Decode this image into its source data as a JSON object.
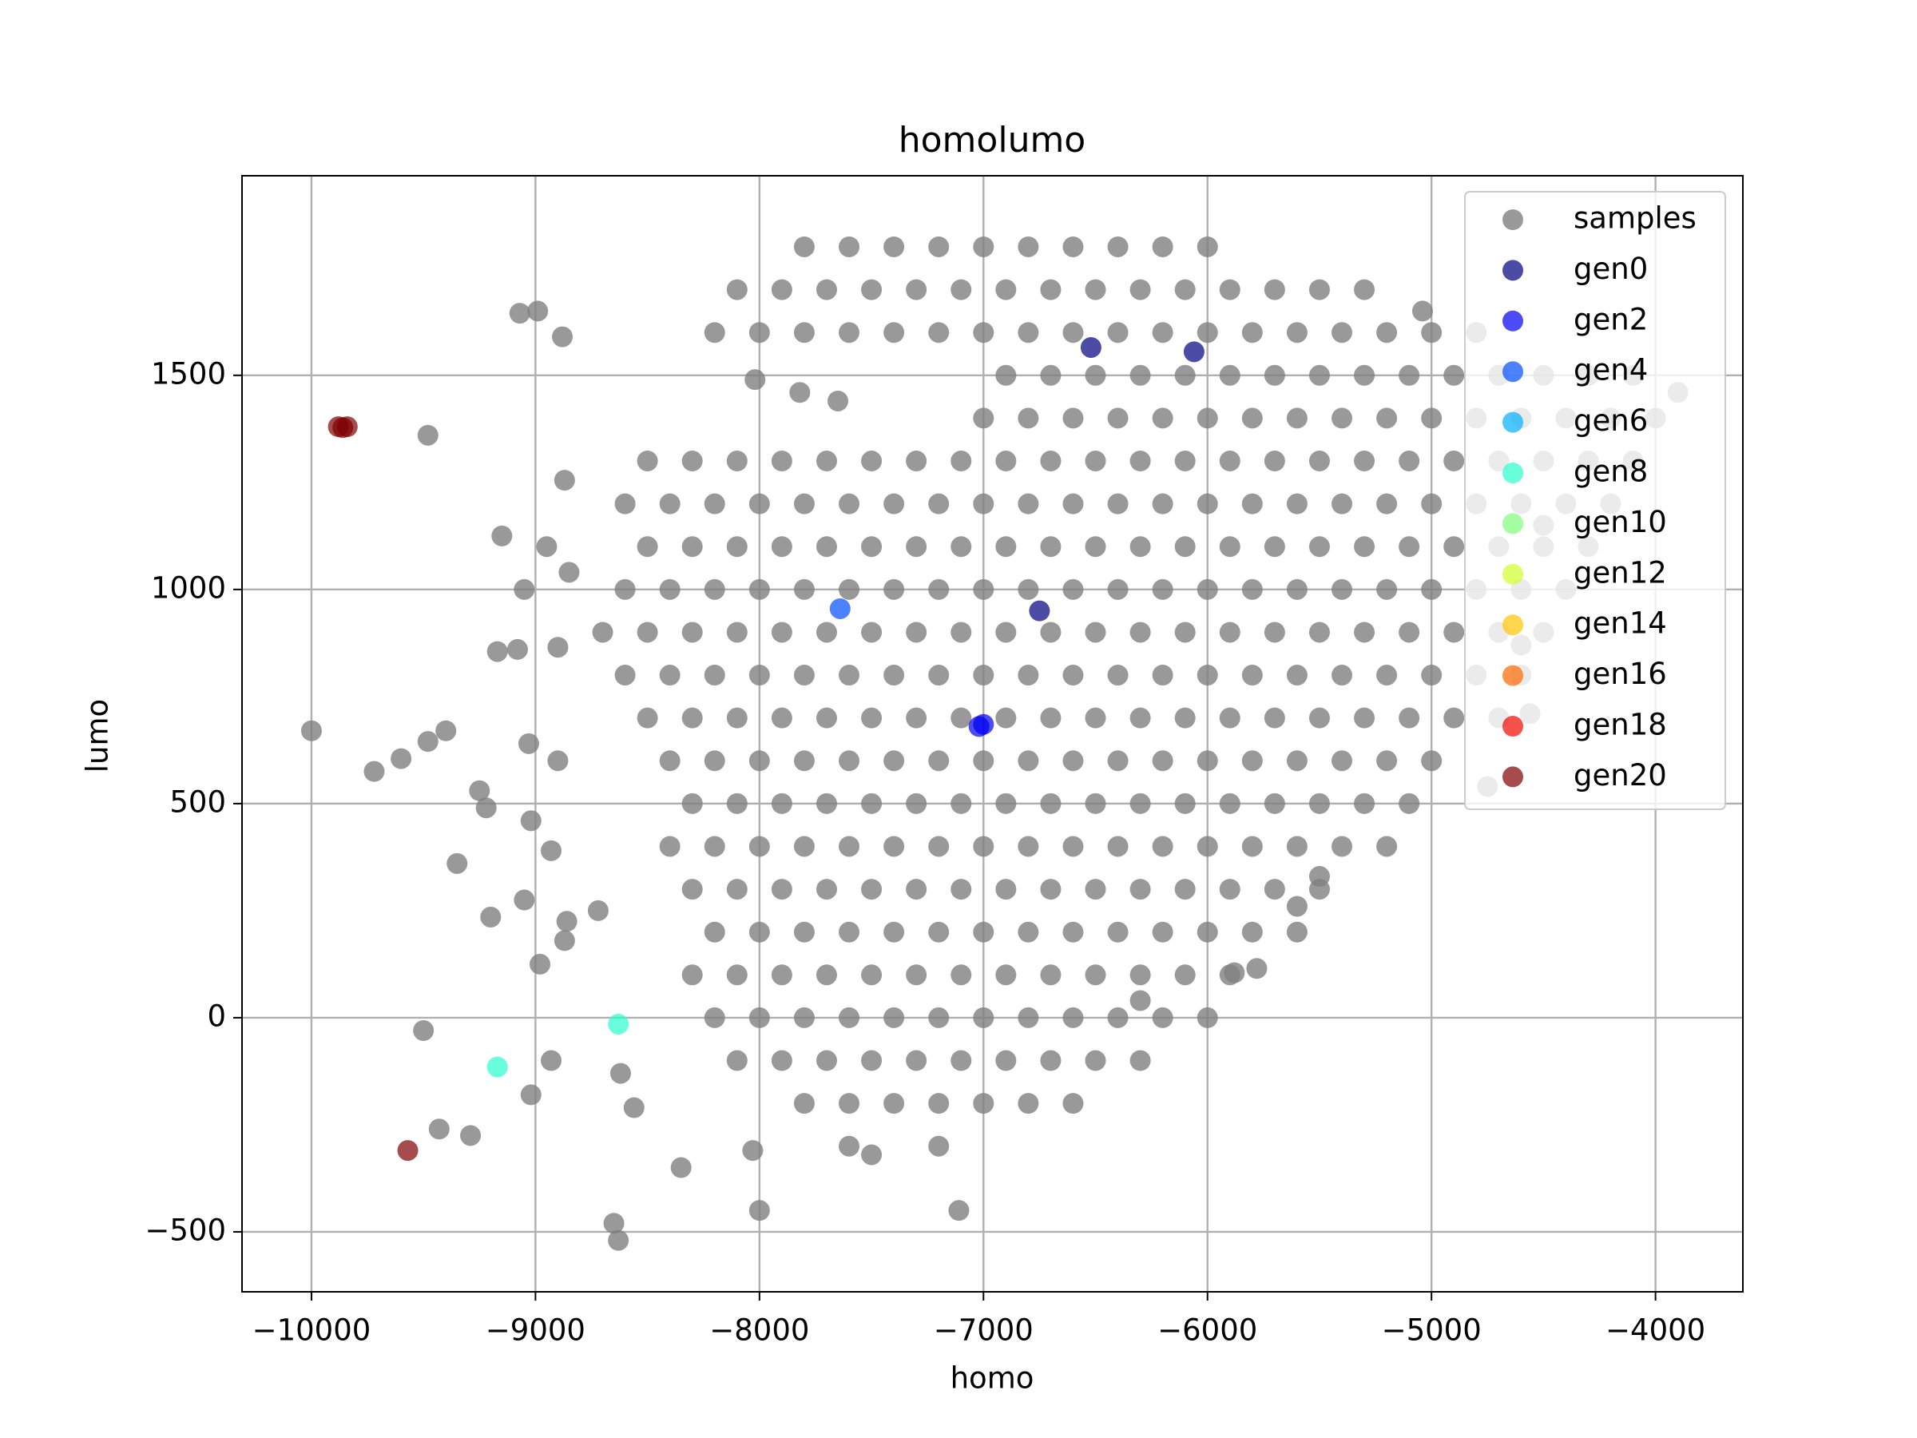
{
  "chart_data": {
    "type": "scatter",
    "title": "homolumo",
    "x_label": "homo",
    "y_label": "lumo",
    "xlim": [
      -10310,
      -3610
    ],
    "ylim": [
      -640,
      1966
    ],
    "xticks": [
      {
        "value": -10000,
        "label": "−10000"
      },
      {
        "value": -9000,
        "label": "−9000"
      },
      {
        "value": -8000,
        "label": "−8000"
      },
      {
        "value": -7000,
        "label": "−7000"
      },
      {
        "value": -6000,
        "label": "−6000"
      },
      {
        "value": -5000,
        "label": "−5000"
      },
      {
        "value": -4000,
        "label": "−4000"
      }
    ],
    "yticks": [
      {
        "value": -500,
        "label": "−500"
      },
      0,
      500,
      1000,
      1500
    ],
    "grid": true,
    "legend": "upper right",
    "series": [
      {
        "name": "samples",
        "color": "#808080",
        "x": [
          -7800,
          -7600,
          -7400,
          -7200,
          -7000,
          -6800,
          -6600,
          -6400,
          -6200,
          -6000,
          -8100,
          -7900,
          -7700,
          -7500,
          -7300,
          -7100,
          -6900,
          -6700,
          -6500,
          -6300,
          -6100,
          -5900,
          -5700,
          -5500,
          -5300,
          -8200,
          -8000,
          -7800,
          -7600,
          -7400,
          -7200,
          -7000,
          -6800,
          -6600,
          -6400,
          -6200,
          -6000,
          -5800,
          -5600,
          -5400,
          -5200,
          -5000,
          -4800,
          -6900,
          -6700,
          -6500,
          -6300,
          -6100,
          -5900,
          -5700,
          -5500,
          -5300,
          -5100,
          -4900,
          -4700,
          -4500,
          -4300,
          -4100,
          -7000,
          -6800,
          -6600,
          -6400,
          -6200,
          -6000,
          -5800,
          -5600,
          -5400,
          -5200,
          -5000,
          -4800,
          -4600,
          -4400,
          -4200,
          -4000,
          -8500,
          -8300,
          -8100,
          -7900,
          -7700,
          -7500,
          -7300,
          -7100,
          -6900,
          -6700,
          -6500,
          -6300,
          -6100,
          -5900,
          -5700,
          -5500,
          -5300,
          -5100,
          -4900,
          -4700,
          -4500,
          -4300,
          -4100,
          -8600,
          -8400,
          -8200,
          -8000,
          -7800,
          -7600,
          -7400,
          -7200,
          -7000,
          -6800,
          -6600,
          -6400,
          -6200,
          -6000,
          -5800,
          -5600,
          -5400,
          -5200,
          -5000,
          -4800,
          -4600,
          -4400,
          -4200,
          -8500,
          -8300,
          -8100,
          -7900,
          -7700,
          -7500,
          -7300,
          -7100,
          -6900,
          -6700,
          -6500,
          -6300,
          -6100,
          -5900,
          -5700,
          -5500,
          -5300,
          -5100,
          -4900,
          -4700,
          -4500,
          -4300,
          -8600,
          -8400,
          -8200,
          -8000,
          -7800,
          -7600,
          -7400,
          -7200,
          -7000,
          -6800,
          -6600,
          -6400,
          -6200,
          -6000,
          -5800,
          -5600,
          -5400,
          -5200,
          -5000,
          -4800,
          -4600,
          -4400,
          -8700,
          -8500,
          -8300,
          -8100,
          -7900,
          -7700,
          -7500,
          -7300,
          -7100,
          -6900,
          -6700,
          -6500,
          -6300,
          -6100,
          -5900,
          -5700,
          -5500,
          -5300,
          -5100,
          -4900,
          -4700,
          -4500,
          -8600,
          -8400,
          -8200,
          -8000,
          -7800,
          -7600,
          -7400,
          -7200,
          -7000,
          -6800,
          -6600,
          -6400,
          -6200,
          -6000,
          -5800,
          -5600,
          -5400,
          -5200,
          -5000,
          -4800,
          -4600,
          -8500,
          -8300,
          -8100,
          -7900,
          -7700,
          -7500,
          -7300,
          -7100,
          -6900,
          -6700,
          -6500,
          -6300,
          -6100,
          -5900,
          -5700,
          -5500,
          -5300,
          -5100,
          -4900,
          -4700,
          -8400,
          -8200,
          -8000,
          -7800,
          -7600,
          -7400,
          -7200,
          -7000,
          -6800,
          -6600,
          -6400,
          -6200,
          -6000,
          -5800,
          -5600,
          -5400,
          -5200,
          -5000,
          -8300,
          -8100,
          -7900,
          -7700,
          -7500,
          -7300,
          -7100,
          -6900,
          -6700,
          -6500,
          -6300,
          -6100,
          -5900,
          -5700,
          -5500,
          -5300,
          -5100,
          -8400,
          -8200,
          -8000,
          -7800,
          -7600,
          -7400,
          -7200,
          -7000,
          -6800,
          -6600,
          -6400,
          -6200,
          -6000,
          -5800,
          -5600,
          -5400,
          -5200,
          -8300,
          -8100,
          -7900,
          -7700,
          -7500,
          -7300,
          -7100,
          -6900,
          -6700,
          -6500,
          -6300,
          -6100,
          -5900,
          -5700,
          -5500,
          -8200,
          -8000,
          -7800,
          -7600,
          -7400,
          -7200,
          -7000,
          -6800,
          -6600,
          -6400,
          -6200,
          -6000,
          -5800,
          -5600,
          -8300,
          -8100,
          -7900,
          -7700,
          -7500,
          -7300,
          -7100,
          -6900,
          -6700,
          -6500,
          -6300,
          -6100,
          -5900,
          -8200,
          -8000,
          -7800,
          -7600,
          -7400,
          -7200,
          -7000,
          -6800,
          -6600,
          -6400,
          -6200,
          -6000,
          -8100,
          -7900,
          -7700,
          -7500,
          -7300,
          -7100,
          -6900,
          -6700,
          -6500,
          -6300,
          -7800,
          -7600,
          -7400,
          -7200,
          -7000,
          -6800,
          -6600,
          -10000,
          -9720,
          -9600,
          -9480,
          -9400,
          -9480,
          -9070,
          -8990,
          -8880,
          -8870,
          -9150,
          -8950,
          -9050,
          -8850,
          -9170,
          -9080,
          -8900,
          -9030,
          -8900,
          -9250,
          -9220,
          -9020,
          -8930,
          -9350,
          -9200,
          -9050,
          -8860,
          -8980,
          -8870,
          -8720,
          -9500,
          -9430,
          -9290,
          -9020,
          -8930,
          -8650,
          -8630,
          -8000,
          -7110,
          -8030,
          -8350,
          -8620,
          -8560,
          -4560,
          -4750,
          -5780,
          -5880,
          -5500,
          -7650,
          -7820,
          -8020,
          -5040,
          -3900,
          -4500,
          -4600,
          -7200,
          -7500,
          -7600,
          -5600,
          -6300
        ],
        "values": [
          1800,
          1800,
          1800,
          1800,
          1800,
          1800,
          1800,
          1800,
          1800,
          1800,
          1700,
          1700,
          1700,
          1700,
          1700,
          1700,
          1700,
          1700,
          1700,
          1700,
          1700,
          1700,
          1700,
          1700,
          1700,
          1600,
          1600,
          1600,
          1600,
          1600,
          1600,
          1600,
          1600,
          1600,
          1600,
          1600,
          1600,
          1600,
          1600,
          1600,
          1600,
          1600,
          1600,
          1500,
          1500,
          1500,
          1500,
          1500,
          1500,
          1500,
          1500,
          1500,
          1500,
          1500,
          1500,
          1500,
          1500,
          1500,
          1400,
          1400,
          1400,
          1400,
          1400,
          1400,
          1400,
          1400,
          1400,
          1400,
          1400,
          1400,
          1400,
          1400,
          1400,
          1400,
          1300,
          1300,
          1300,
          1300,
          1300,
          1300,
          1300,
          1300,
          1300,
          1300,
          1300,
          1300,
          1300,
          1300,
          1300,
          1300,
          1300,
          1300,
          1300,
          1300,
          1300,
          1300,
          1300,
          1200,
          1200,
          1200,
          1200,
          1200,
          1200,
          1200,
          1200,
          1200,
          1200,
          1200,
          1200,
          1200,
          1200,
          1200,
          1200,
          1200,
          1200,
          1200,
          1200,
          1200,
          1200,
          1200,
          1100,
          1100,
          1100,
          1100,
          1100,
          1100,
          1100,
          1100,
          1100,
          1100,
          1100,
          1100,
          1100,
          1100,
          1100,
          1100,
          1100,
          1100,
          1100,
          1100,
          1100,
          1100,
          1000,
          1000,
          1000,
          1000,
          1000,
          1000,
          1000,
          1000,
          1000,
          1000,
          1000,
          1000,
          1000,
          1000,
          1000,
          1000,
          1000,
          1000,
          1000,
          1000,
          1000,
          1000,
          900,
          900,
          900,
          900,
          900,
          900,
          900,
          900,
          900,
          900,
          900,
          900,
          900,
          900,
          900,
          900,
          900,
          900,
          900,
          900,
          900,
          900,
          800,
          800,
          800,
          800,
          800,
          800,
          800,
          800,
          800,
          800,
          800,
          800,
          800,
          800,
          800,
          800,
          800,
          800,
          800,
          800,
          800,
          700,
          700,
          700,
          700,
          700,
          700,
          700,
          700,
          700,
          700,
          700,
          700,
          700,
          700,
          700,
          700,
          700,
          700,
          700,
          700,
          600,
          600,
          600,
          600,
          600,
          600,
          600,
          600,
          600,
          600,
          600,
          600,
          600,
          600,
          600,
          600,
          600,
          600,
          500,
          500,
          500,
          500,
          500,
          500,
          500,
          500,
          500,
          500,
          500,
          500,
          500,
          500,
          500,
          500,
          500,
          400,
          400,
          400,
          400,
          400,
          400,
          400,
          400,
          400,
          400,
          400,
          400,
          400,
          400,
          400,
          400,
          400,
          300,
          300,
          300,
          300,
          300,
          300,
          300,
          300,
          300,
          300,
          300,
          300,
          300,
          300,
          300,
          200,
          200,
          200,
          200,
          200,
          200,
          200,
          200,
          200,
          200,
          200,
          200,
          200,
          200,
          100,
          100,
          100,
          100,
          100,
          100,
          100,
          100,
          100,
          100,
          100,
          100,
          100,
          0,
          0,
          0,
          0,
          0,
          0,
          0,
          0,
          0,
          0,
          0,
          0,
          -100,
          -100,
          -100,
          -100,
          -100,
          -100,
          -100,
          -100,
          -100,
          -100,
          -200,
          -200,
          -200,
          -200,
          -200,
          -200,
          -200,
          670,
          575,
          605,
          645,
          670,
          1360,
          1645,
          1650,
          1590,
          1255,
          1125,
          1100,
          1000,
          1040,
          855,
          860,
          865,
          640,
          600,
          530,
          490,
          460,
          390,
          360,
          235,
          275,
          225,
          125,
          180,
          250,
          -30,
          -260,
          -275,
          -180,
          -100,
          -480,
          -520,
          -450,
          -450,
          -310,
          -350,
          -130,
          -210,
          710,
          540,
          115,
          105,
          330,
          1440,
          1460,
          1490,
          1650,
          1460,
          1150,
          870,
          -300,
          -320,
          -300,
          260,
          40
        ]
      },
      {
        "name": "gen0",
        "color": "#000080",
        "x": [
          -6520,
          -6060,
          -6750
        ],
        "values": [
          1565,
          1555,
          950
        ]
      },
      {
        "name": "gen2",
        "color": "#0000f1",
        "x": [
          -7020,
          -7000
        ],
        "values": [
          680,
          685
        ]
      },
      {
        "name": "gen4",
        "color": "#004cff",
        "x": [
          -7640
        ],
        "values": [
          955
        ]
      },
      {
        "name": "gen6",
        "color": "#00b0ff",
        "x": [],
        "values": []
      },
      {
        "name": "gen8",
        "color": "#29ffce",
        "x": [
          -9170,
          -8630
        ],
        "values": [
          -115,
          -15
        ]
      },
      {
        "name": "gen10",
        "color": "#7dff7a",
        "x": [],
        "values": []
      },
      {
        "name": "gen12",
        "color": "#ceff29",
        "x": [],
        "values": []
      },
      {
        "name": "gen14",
        "color": "#ffc400",
        "x": [],
        "values": []
      },
      {
        "name": "gen16",
        "color": "#ff6800",
        "x": [],
        "values": []
      },
      {
        "name": "gen18",
        "color": "#f10800",
        "x": [],
        "values": []
      },
      {
        "name": "gen20",
        "color": "#800000",
        "x": [
          -9880,
          -9840,
          -9860,
          -9570
        ],
        "values": [
          1380,
          1380,
          1378,
          -310
        ]
      }
    ]
  }
}
